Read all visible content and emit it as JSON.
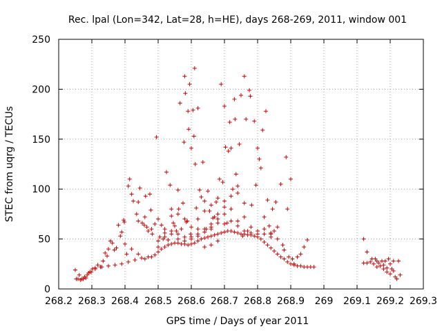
{
  "chart_data": {
    "type": "scatter",
    "title": "Rec. lpal (Lon=342, Lat=28, h=HE), days 268-269, 2011, window 001",
    "xlabel": "GPS time / Days of year 2011",
    "ylabel": "STEC from uqrg / TECUs",
    "xlim": [
      268.2,
      269.3
    ],
    "ylim": [
      0,
      250
    ],
    "xticks": [
      {
        "value": 268.2,
        "label": "268.2"
      },
      {
        "value": 268.3,
        "label": "268.3"
      },
      {
        "value": 268.4,
        "label": "268.4"
      },
      {
        "value": 268.5,
        "label": "268.5"
      },
      {
        "value": 268.6,
        "label": "268.6"
      },
      {
        "value": 268.7,
        "label": "268.7"
      },
      {
        "value": 268.8,
        "label": "268.8"
      },
      {
        "value": 268.9,
        "label": "268.9"
      },
      {
        "value": 269.0,
        "label": "269"
      },
      {
        "value": 269.1,
        "label": "269.1"
      },
      {
        "value": 269.2,
        "label": "269.2"
      },
      {
        "value": 269.3,
        "label": "269.3"
      }
    ],
    "yticks": [
      {
        "value": 0,
        "label": "0"
      },
      {
        "value": 50,
        "label": "50"
      },
      {
        "value": 100,
        "label": "100"
      },
      {
        "value": 150,
        "label": "150"
      },
      {
        "value": 200,
        "label": "200"
      },
      {
        "value": 250,
        "label": "250"
      }
    ],
    "grid": true,
    "marker": "plus",
    "color": "#cc0000",
    "series": [
      {
        "points": [
          [
            268.25,
            19
          ],
          [
            268.253,
            10
          ],
          [
            268.258,
            10
          ],
          [
            268.262,
            14
          ],
          [
            268.266,
            9
          ],
          [
            268.27,
            10
          ],
          [
            268.274,
            10
          ],
          [
            268.278,
            12
          ],
          [
            268.282,
            11
          ],
          [
            268.286,
            14
          ],
          [
            268.29,
            16
          ],
          [
            268.294,
            17
          ],
          [
            268.298,
            17
          ],
          [
            268.302,
            20
          ],
          [
            268.31,
            21
          ],
          [
            268.318,
            24
          ],
          [
            268.326,
            22
          ],
          [
            268.334,
            28
          ],
          [
            268.34,
            36
          ],
          [
            268.346,
            33
          ],
          [
            268.35,
            40
          ],
          [
            268.356,
            48
          ],
          [
            268.362,
            46
          ],
          [
            268.368,
            39
          ],
          [
            268.374,
            41
          ],
          [
            268.38,
            64
          ],
          [
            268.386,
            53
          ],
          [
            268.39,
            57
          ],
          [
            268.396,
            69
          ],
          [
            268.398,
            67
          ],
          [
            268.405,
            35
          ],
          [
            268.41,
            103
          ],
          [
            268.414,
            110
          ],
          [
            268.42,
            95
          ],
          [
            268.425,
            88
          ],
          [
            268.435,
            75
          ],
          [
            268.44,
            87
          ],
          [
            268.445,
            101
          ],
          [
            268.452,
            66
          ],
          [
            268.458,
            64
          ],
          [
            268.462,
            93
          ],
          [
            268.466,
            62
          ],
          [
            268.47,
            58
          ],
          [
            268.475,
            95
          ],
          [
            268.478,
            79
          ],
          [
            268.482,
            55
          ],
          [
            268.49,
            65
          ],
          [
            268.495,
            152
          ],
          [
            268.5,
            42
          ],
          [
            268.505,
            52
          ],
          [
            268.51,
            64
          ],
          [
            268.515,
            50
          ],
          [
            268.52,
            56
          ],
          [
            268.525,
            117
          ],
          [
            268.53,
            49
          ],
          [
            268.536,
            104
          ],
          [
            268.54,
            73
          ],
          [
            268.546,
            66
          ],
          [
            268.55,
            63
          ],
          [
            268.555,
            58
          ],
          [
            268.56,
            99
          ],
          [
            268.562,
            80
          ],
          [
            268.566,
            186
          ],
          [
            268.57,
            60
          ],
          [
            268.575,
            86
          ],
          [
            268.578,
            147
          ],
          [
            268.58,
            213
          ],
          [
            268.582,
            196
          ],
          [
            268.585,
            67
          ],
          [
            268.588,
            68
          ],
          [
            268.59,
            178
          ],
          [
            268.592,
            160
          ],
          [
            268.595,
            205
          ],
          [
            268.598,
            55
          ],
          [
            268.6,
            141
          ],
          [
            268.605,
            179
          ],
          [
            268.608,
            153
          ],
          [
            268.61,
            221
          ],
          [
            268.612,
            125
          ],
          [
            268.615,
            81
          ],
          [
            268.62,
            181
          ],
          [
            268.625,
            99
          ],
          [
            268.63,
            92
          ],
          [
            268.635,
            127
          ],
          [
            268.64,
            88
          ],
          [
            268.645,
            60
          ],
          [
            268.65,
            98
          ],
          [
            268.655,
            78
          ],
          [
            268.66,
            84
          ],
          [
            268.665,
            71
          ],
          [
            268.67,
            72
          ],
          [
            268.675,
            87
          ],
          [
            268.68,
            91
          ],
          [
            268.685,
            110
          ],
          [
            268.69,
            205
          ],
          [
            268.695,
            107
          ],
          [
            268.7,
            183
          ],
          [
            268.703,
            142
          ],
          [
            268.708,
            66
          ],
          [
            268.712,
            138
          ],
          [
            268.716,
            167
          ],
          [
            268.72,
            141
          ],
          [
            268.725,
            100
          ],
          [
            268.73,
            190
          ],
          [
            268.732,
            170
          ],
          [
            268.735,
            115
          ],
          [
            268.74,
            103
          ],
          [
            268.745,
            145
          ],
          [
            268.75,
            194
          ],
          [
            268.755,
            53
          ],
          [
            268.76,
            213
          ],
          [
            268.765,
            170
          ],
          [
            268.77,
            58
          ],
          [
            268.775,
            199
          ],
          [
            268.778,
            193
          ],
          [
            268.782,
            84
          ],
          [
            268.79,
            168
          ],
          [
            268.795,
            104
          ],
          [
            268.8,
            141
          ],
          [
            268.805,
            130
          ],
          [
            268.81,
            121
          ],
          [
            268.815,
            159
          ],
          [
            268.82,
            72
          ],
          [
            268.825,
            178
          ],
          [
            268.83,
            89
          ],
          [
            268.835,
            63
          ],
          [
            268.84,
            55
          ],
          [
            268.845,
            80
          ],
          [
            268.85,
            58
          ],
          [
            268.855,
            87
          ],
          [
            268.86,
            62
          ],
          [
            268.87,
            105
          ],
          [
            268.876,
            44
          ],
          [
            268.88,
            39
          ],
          [
            268.886,
            132
          ],
          [
            268.89,
            80
          ],
          [
            268.894,
            32
          ],
          [
            268.9,
            110
          ],
          [
            268.905,
            30
          ],
          [
            268.91,
            25
          ],
          [
            268.92,
            32
          ],
          [
            268.93,
            35
          ],
          [
            268.94,
            42
          ],
          [
            268.95,
            49
          ],
          [
            268.31,
            20
          ],
          [
            268.33,
            22
          ],
          [
            268.35,
            23
          ],
          [
            268.37,
            24
          ],
          [
            268.39,
            25
          ],
          [
            268.41,
            27
          ],
          [
            268.43,
            29
          ],
          [
            268.45,
            31
          ],
          [
            268.47,
            32
          ],
          [
            268.49,
            34
          ],
          [
            268.5,
            37
          ],
          [
            268.51,
            40
          ],
          [
            268.52,
            42
          ],
          [
            268.53,
            44
          ],
          [
            268.54,
            45
          ],
          [
            268.55,
            46
          ],
          [
            268.56,
            46
          ],
          [
            268.57,
            45
          ],
          [
            268.58,
            45
          ],
          [
            268.59,
            44
          ],
          [
            268.6,
            45
          ],
          [
            268.61,
            46
          ],
          [
            268.62,
            48
          ],
          [
            268.63,
            50
          ],
          [
            268.64,
            51
          ],
          [
            268.65,
            52
          ],
          [
            268.66,
            53
          ],
          [
            268.67,
            54
          ],
          [
            268.68,
            55
          ],
          [
            268.69,
            56
          ],
          [
            268.7,
            57
          ],
          [
            268.71,
            58
          ],
          [
            268.72,
            58
          ],
          [
            268.73,
            57
          ],
          [
            268.74,
            56
          ],
          [
            268.75,
            55
          ],
          [
            268.76,
            55
          ],
          [
            268.77,
            54
          ],
          [
            268.78,
            54
          ],
          [
            268.79,
            53
          ],
          [
            268.8,
            52
          ],
          [
            268.81,
            50
          ],
          [
            268.82,
            47
          ],
          [
            268.83,
            44
          ],
          [
            268.84,
            41
          ],
          [
            268.85,
            38
          ],
          [
            268.86,
            35
          ],
          [
            268.87,
            32
          ],
          [
            268.88,
            30
          ],
          [
            268.89,
            27
          ],
          [
            268.9,
            25
          ],
          [
            268.91,
            24
          ],
          [
            268.92,
            23
          ],
          [
            268.93,
            23
          ],
          [
            268.94,
            22
          ],
          [
            268.95,
            22
          ],
          [
            268.96,
            22
          ],
          [
            268.97,
            22
          ],
          [
            268.4,
            45
          ],
          [
            268.42,
            40
          ],
          [
            268.44,
            35
          ],
          [
            268.46,
            30
          ],
          [
            268.48,
            32
          ],
          [
            268.5,
            48
          ],
          [
            268.52,
            52
          ],
          [
            268.54,
            55
          ],
          [
            268.56,
            50
          ],
          [
            268.58,
            48
          ],
          [
            268.6,
            52
          ],
          [
            268.62,
            55
          ],
          [
            268.64,
            60
          ],
          [
            268.66,
            65
          ],
          [
            268.68,
            70
          ],
          [
            268.7,
            75
          ],
          [
            268.72,
            68
          ],
          [
            268.74,
            63
          ],
          [
            268.76,
            58
          ],
          [
            268.78,
            56
          ],
          [
            268.8,
            55
          ],
          [
            268.82,
            55
          ],
          [
            268.84,
            56
          ],
          [
            268.44,
            68
          ],
          [
            268.46,
            72
          ],
          [
            268.48,
            60
          ],
          [
            268.5,
            70
          ],
          [
            268.52,
            60
          ],
          [
            268.54,
            58
          ],
          [
            268.56,
            55
          ],
          [
            268.58,
            52
          ],
          [
            268.6,
            50
          ],
          [
            268.62,
            53
          ],
          [
            268.64,
            57
          ],
          [
            268.66,
            62
          ],
          [
            268.68,
            66
          ],
          [
            268.7,
            82
          ],
          [
            268.72,
            80
          ],
          [
            268.74,
            68
          ],
          [
            268.76,
            72
          ],
          [
            268.78,
            62
          ],
          [
            268.8,
            58
          ],
          [
            268.82,
            60
          ],
          [
            268.84,
            52
          ],
          [
            268.86,
            50
          ],
          [
            268.6,
            62
          ],
          [
            268.62,
            70
          ],
          [
            268.64,
            78
          ],
          [
            268.66,
            60
          ],
          [
            268.68,
            75
          ],
          [
            268.7,
            88
          ],
          [
            268.72,
            93
          ],
          [
            268.74,
            96
          ],
          [
            268.76,
            86
          ],
          [
            268.7,
            65
          ],
          [
            268.68,
            48
          ],
          [
            268.66,
            44
          ],
          [
            268.64,
            42
          ],
          [
            268.62,
            60
          ],
          [
            268.58,
            70
          ],
          [
            268.56,
            75
          ],
          [
            268.54,
            80
          ],
          [
            269.12,
            50
          ],
          [
            269.13,
            37
          ],
          [
            269.12,
            26
          ],
          [
            269.13,
            26
          ],
          [
            269.14,
            27
          ],
          [
            269.145,
            30
          ],
          [
            269.15,
            25
          ],
          [
            269.155,
            30
          ],
          [
            269.16,
            28
          ],
          [
            269.165,
            26
          ],
          [
            269.17,
            23
          ],
          [
            269.175,
            28
          ],
          [
            269.18,
            20
          ],
          [
            269.185,
            28
          ],
          [
            269.19,
            17
          ],
          [
            269.195,
            30
          ],
          [
            269.2,
            15
          ],
          [
            269.205,
            20
          ],
          [
            269.21,
            28
          ],
          [
            269.215,
            12
          ],
          [
            269.22,
            10
          ],
          [
            269.225,
            28
          ],
          [
            269.23,
            14
          ],
          [
            269.2,
            25
          ],
          [
            269.18,
            24
          ],
          [
            269.16,
            22
          ],
          [
            269.19,
            21
          ],
          [
            269.21,
            18
          ]
        ]
      }
    ]
  }
}
